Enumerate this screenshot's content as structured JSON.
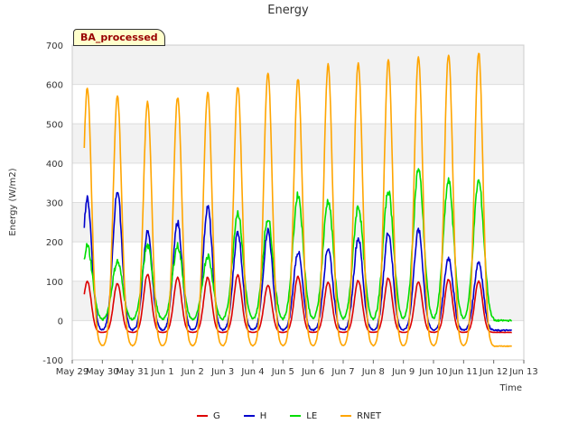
{
  "chart_data": {
    "type": "line",
    "title": "Energy",
    "badge": "BA_processed",
    "xlabel": "Time",
    "ylabel": "Energy (W/m2)",
    "ylim": [
      -100,
      700
    ],
    "xlim": [
      0,
      15
    ],
    "grid": true,
    "legend_position": "bottom",
    "yticks": [
      -100,
      0,
      100,
      200,
      300,
      400,
      500,
      600,
      700
    ],
    "xticks": [
      {
        "pos": 0,
        "label": "May 29"
      },
      {
        "pos": 1,
        "label": "May 30"
      },
      {
        "pos": 2,
        "label": "May 31"
      },
      {
        "pos": 3,
        "label": "Jun 1"
      },
      {
        "pos": 4,
        "label": "Jun 2"
      },
      {
        "pos": 5,
        "label": "Jun 3"
      },
      {
        "pos": 6,
        "label": "Jun 4"
      },
      {
        "pos": 7,
        "label": "Jun 5"
      },
      {
        "pos": 8,
        "label": "Jun 6"
      },
      {
        "pos": 9,
        "label": "Jun 7"
      },
      {
        "pos": 10,
        "label": "Jun 8"
      },
      {
        "pos": 11,
        "label": "Jun 9"
      },
      {
        "pos": 12,
        "label": "Jun 10"
      },
      {
        "pos": 13,
        "label": "Jun 11"
      },
      {
        "pos": 14,
        "label": "Jun 12"
      },
      {
        "pos": 15,
        "label": "Jun 13"
      }
    ],
    "days": [
      0.5,
      1.5,
      2.5,
      3.5,
      4.5,
      5.5,
      6.5,
      7.5,
      8.5,
      9.5,
      10.5,
      11.5,
      12.5,
      13.5
    ],
    "series": [
      {
        "name": "G",
        "color": "#dd0000",
        "night": -30,
        "peaks": [
          100,
          95,
          118,
          110,
          110,
          115,
          90,
          112,
          98,
          102,
          108,
          98,
          105,
          100
        ]
      },
      {
        "name": "H",
        "color": "#0000cc",
        "night": -25,
        "peaks": [
          310,
          330,
          225,
          250,
          290,
          225,
          230,
          175,
          185,
          210,
          225,
          230,
          160,
          150
        ]
      },
      {
        "name": "LE",
        "color": "#00dd00",
        "night": 0,
        "peaks": [
          190,
          150,
          190,
          190,
          165,
          275,
          260,
          320,
          305,
          290,
          330,
          385,
          355,
          355
        ]
      },
      {
        "name": "RNET",
        "color": "#ffa500",
        "night": -65,
        "peaks": [
          590,
          570,
          555,
          568,
          580,
          595,
          630,
          615,
          650,
          655,
          660,
          670,
          678,
          682
        ]
      }
    ]
  }
}
